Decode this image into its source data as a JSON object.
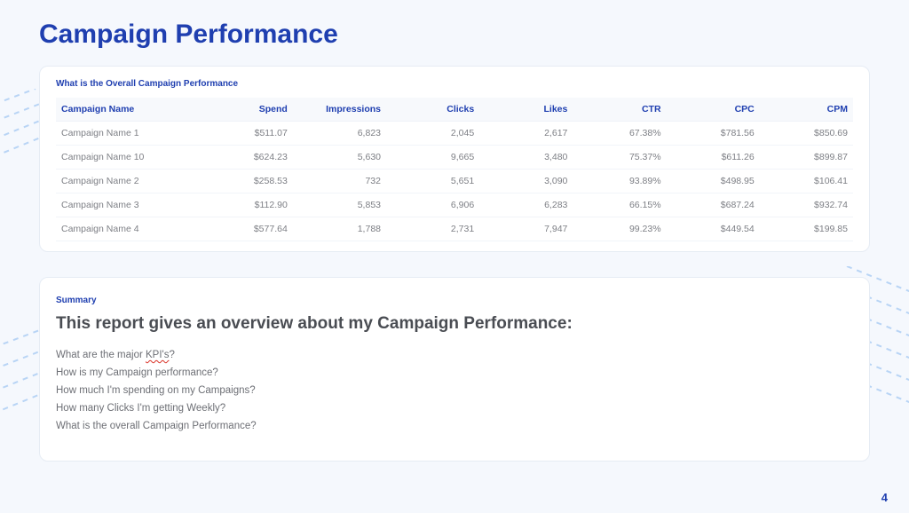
{
  "page": {
    "title": "Campaign Performance",
    "page_number": "4",
    "background_color": "#f5f8fd",
    "accent_color": "#1f3fb0",
    "deco_line_color": "#b8d4f5"
  },
  "table_section": {
    "label": "What is the Overall Campaign Performance",
    "columns": [
      "Campaign Name",
      "Spend",
      "Impressions",
      "Clicks",
      "Likes",
      "CTR",
      "CPC",
      "CPM"
    ],
    "rows": [
      [
        "Campaign Name 1",
        "$511.07",
        "6,823",
        "2,045",
        "2,617",
        "67.38%",
        "$781.56",
        "$850.69"
      ],
      [
        "Campaign Name 10",
        "$624.23",
        "5,630",
        "9,665",
        "3,480",
        "75.37%",
        "$611.26",
        "$899.87"
      ],
      [
        "Campaign Name 2",
        "$258.53",
        "732",
        "5,651",
        "3,090",
        "93.89%",
        "$498.95",
        "$106.41"
      ],
      [
        "Campaign Name 3",
        "$112.90",
        "5,853",
        "6,906",
        "6,283",
        "66.15%",
        "$687.24",
        "$932.74"
      ],
      [
        "Campaign Name 4",
        "$577.64",
        "1,788",
        "2,731",
        "7,947",
        "99.23%",
        "$449.54",
        "$199.85"
      ]
    ]
  },
  "summary_section": {
    "label": "Summary",
    "heading": "This report gives an overview about my Campaign Performance:",
    "kpi_line_prefix": "What are the major ",
    "kpi_word": "KPI's",
    "kpi_line_suffix": "?",
    "lines": [
      "How is my Campaign performance?",
      "How much I'm spending on my Campaigns?",
      "How many Clicks I'm getting Weekly?",
      "What is the overall Campaign Performance?"
    ]
  }
}
